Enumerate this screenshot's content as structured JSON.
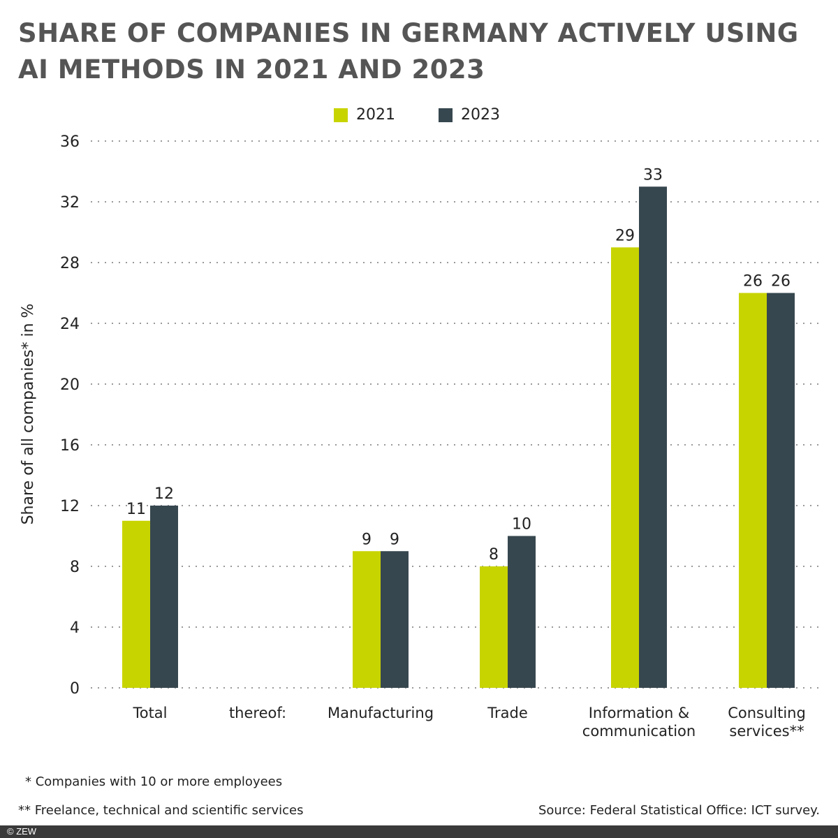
{
  "title_line1": "SHARE OF COMPANIES IN GERMANY ACTIVELY USING",
  "title_line2": "AI METHODS IN 2021 AND 2023",
  "colors": {
    "2021": "#c8d400",
    "2023": "#37474f"
  },
  "chart_data": {
    "type": "bar",
    "title": "SHARE OF COMPANIES IN GERMANY ACTIVELY USING AI METHODS IN 2021 AND 2023",
    "ylabel": "Share of all companies* in %",
    "ylim": [
      0,
      36
    ],
    "yticks": [
      0,
      4,
      8,
      12,
      16,
      20,
      24,
      28,
      32,
      36
    ],
    "grid": true,
    "legend_position": "top-center",
    "categories": [
      "Total",
      "thereof:",
      "Manufacturing",
      "Trade",
      "Information & communication",
      "Consulting services**"
    ],
    "series": [
      {
        "name": "2021",
        "values": [
          11,
          null,
          9,
          8,
          29,
          26
        ]
      },
      {
        "name": "2023",
        "values": [
          12,
          null,
          9,
          10,
          33,
          26
        ]
      }
    ]
  },
  "notes": {
    "n1": "* Companies with 10 or more employees",
    "n2": "** Freelance, technical and scientific services",
    "source": "Source: Federal Statistical Office: ICT survey."
  },
  "footer": "© ZEW"
}
